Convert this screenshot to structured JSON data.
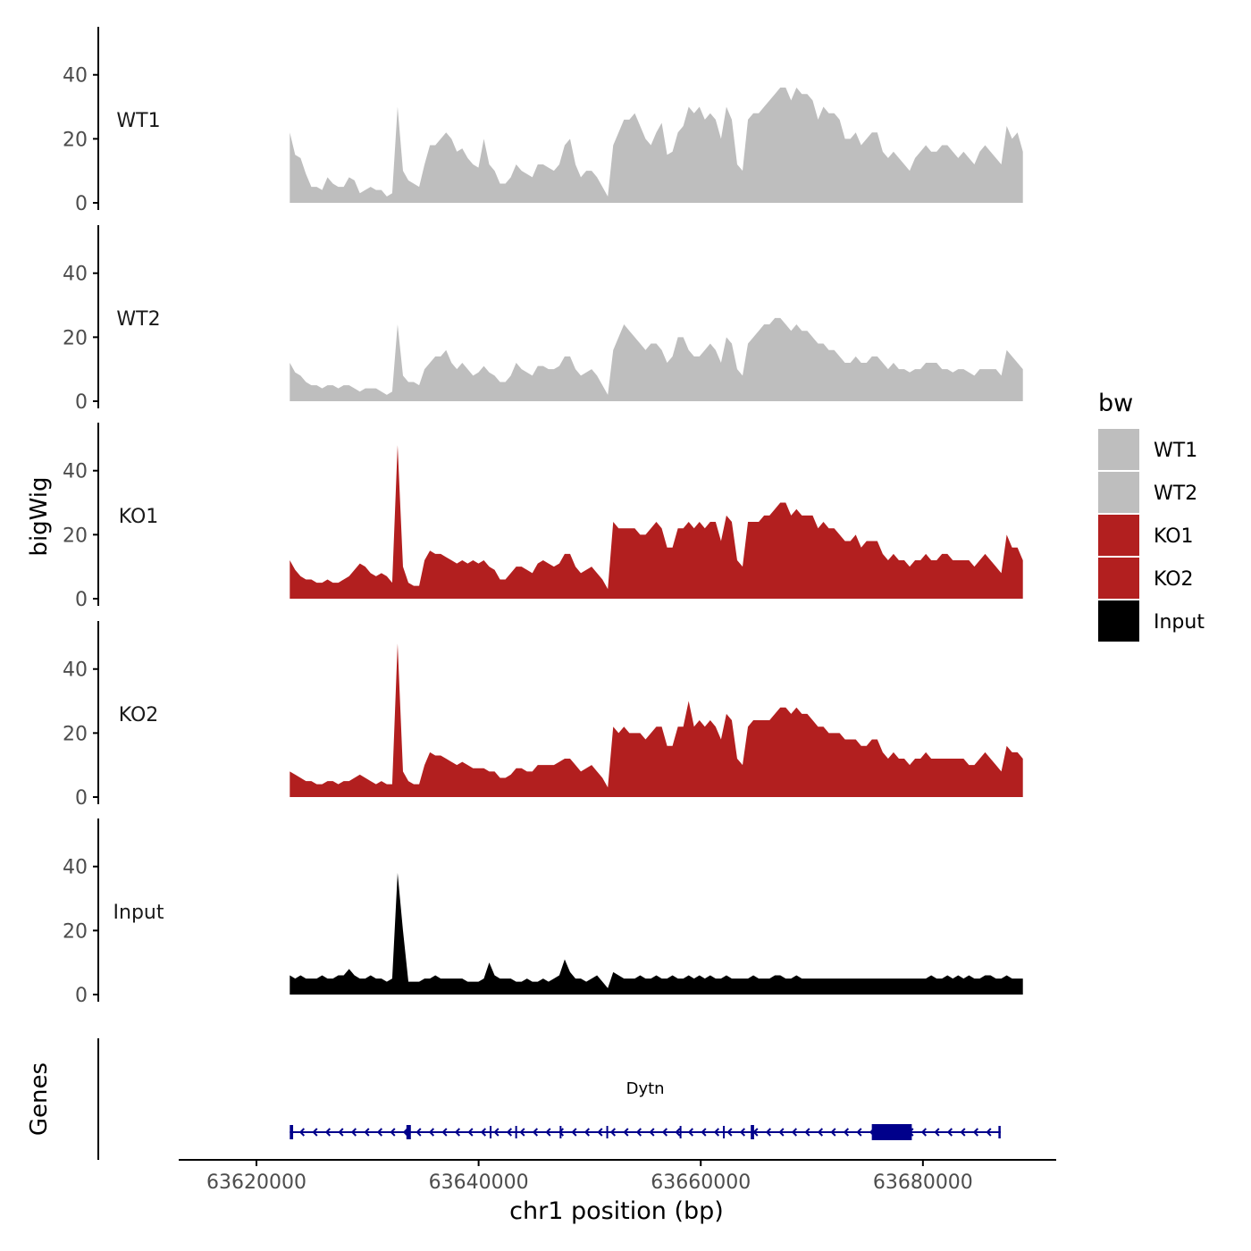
{
  "chart_data": {
    "type": "area",
    "chromosome": "chr1",
    "xlabel": "chr1 position (bp)",
    "ylabel": "bigWig",
    "genes_label": "Genes",
    "xlim": [
      63613000,
      63692000
    ],
    "data_range": [
      63623000,
      63689000
    ],
    "x_ticks": [
      63620000,
      63640000,
      63660000,
      63680000
    ],
    "x_tick_labels": [
      "63620000",
      "63640000",
      "63660000",
      "63680000"
    ],
    "ylim": [
      0,
      55
    ],
    "y_ticks": [
      0,
      20,
      40
    ],
    "y_tick_labels": [
      "0",
      "20",
      "40"
    ],
    "legend": {
      "title": "bw",
      "position": "right",
      "entries": [
        {
          "label": "WT1",
          "color": "#bebebe"
        },
        {
          "label": "WT2",
          "color": "#bebebe"
        },
        {
          "label": "KO1",
          "color": "#b21f1f"
        },
        {
          "label": "KO2",
          "color": "#b21f1f"
        },
        {
          "label": "Input",
          "color": "#000000"
        }
      ]
    },
    "series": [
      {
        "name": "WT1",
        "color": "#bebebe",
        "values": [
          22,
          15,
          14,
          9,
          5,
          5,
          4,
          8,
          6,
          5,
          5,
          8,
          7,
          3,
          4,
          5,
          4,
          4,
          2,
          3,
          30,
          10,
          7,
          6,
          5,
          12,
          18,
          18,
          20,
          22,
          20,
          16,
          17,
          14,
          12,
          11,
          20,
          12,
          10,
          6,
          6,
          8,
          12,
          10,
          9,
          8,
          12,
          12,
          11,
          10,
          12,
          18,
          20,
          12,
          8,
          10,
          10,
          8,
          5,
          2,
          18,
          22,
          26,
          26,
          28,
          24,
          20,
          18,
          22,
          25,
          15,
          16,
          22,
          24,
          30,
          28,
          30,
          26,
          28,
          26,
          20,
          30,
          26,
          12,
          10,
          26,
          28,
          28,
          30,
          32,
          34,
          36,
          36,
          32,
          36,
          34,
          34,
          32,
          26,
          30,
          28,
          28,
          26,
          20,
          20,
          22,
          18,
          20,
          22,
          22,
          16,
          14,
          16,
          14,
          12,
          10,
          14,
          16,
          18,
          16,
          16,
          18,
          18,
          16,
          14,
          16,
          14,
          12,
          16,
          18,
          16,
          14,
          12,
          24,
          20,
          22,
          16
        ]
      },
      {
        "name": "WT2",
        "color": "#bebebe",
        "values": [
          12,
          9,
          8,
          6,
          5,
          5,
          4,
          5,
          5,
          4,
          5,
          5,
          4,
          3,
          4,
          4,
          4,
          3,
          2,
          3,
          24,
          8,
          6,
          6,
          5,
          10,
          12,
          14,
          14,
          16,
          12,
          10,
          12,
          10,
          8,
          9,
          11,
          9,
          8,
          6,
          6,
          8,
          12,
          10,
          9,
          8,
          11,
          11,
          10,
          10,
          11,
          14,
          14,
          10,
          8,
          9,
          10,
          8,
          5,
          2,
          16,
          20,
          24,
          22,
          20,
          18,
          16,
          18,
          18,
          16,
          12,
          14,
          20,
          20,
          16,
          14,
          14,
          16,
          18,
          16,
          12,
          20,
          18,
          10,
          8,
          18,
          20,
          22,
          24,
          24,
          26,
          26,
          24,
          22,
          24,
          22,
          22,
          20,
          18,
          18,
          16,
          16,
          14,
          12,
          12,
          14,
          12,
          12,
          14,
          14,
          12,
          10,
          12,
          10,
          10,
          9,
          10,
          10,
          12,
          12,
          12,
          10,
          10,
          9,
          10,
          10,
          9,
          8,
          10,
          10,
          10,
          10,
          8,
          16,
          14,
          12,
          10
        ]
      },
      {
        "name": "KO1",
        "color": "#b21f1f",
        "values": [
          12,
          9,
          7,
          6,
          6,
          5,
          5,
          6,
          5,
          5,
          6,
          7,
          9,
          11,
          10,
          8,
          7,
          8,
          7,
          5,
          48,
          10,
          5,
          4,
          4,
          12,
          15,
          14,
          14,
          13,
          12,
          11,
          12,
          11,
          12,
          11,
          12,
          10,
          9,
          6,
          6,
          8,
          10,
          10,
          9,
          8,
          11,
          12,
          11,
          10,
          11,
          14,
          14,
          10,
          8,
          9,
          10,
          8,
          6,
          3,
          24,
          22,
          22,
          22,
          22,
          20,
          20,
          22,
          24,
          22,
          16,
          16,
          22,
          22,
          24,
          22,
          24,
          22,
          24,
          24,
          18,
          26,
          24,
          12,
          10,
          24,
          24,
          24,
          26,
          26,
          28,
          30,
          30,
          26,
          28,
          26,
          26,
          26,
          22,
          24,
          22,
          22,
          20,
          18,
          18,
          20,
          16,
          18,
          18,
          18,
          14,
          12,
          14,
          12,
          12,
          10,
          12,
          12,
          14,
          12,
          12,
          14,
          14,
          12,
          12,
          12,
          12,
          10,
          12,
          14,
          12,
          10,
          8,
          20,
          16,
          16,
          12
        ]
      },
      {
        "name": "KO2",
        "color": "#b21f1f",
        "values": [
          8,
          7,
          6,
          5,
          5,
          4,
          4,
          5,
          5,
          4,
          5,
          5,
          6,
          7,
          6,
          5,
          4,
          5,
          4,
          4,
          48,
          8,
          5,
          4,
          4,
          10,
          14,
          13,
          13,
          12,
          11,
          10,
          11,
          10,
          9,
          9,
          9,
          8,
          8,
          6,
          6,
          7,
          9,
          9,
          8,
          8,
          10,
          10,
          10,
          10,
          11,
          12,
          12,
          10,
          8,
          9,
          10,
          8,
          6,
          3,
          22,
          20,
          22,
          20,
          20,
          20,
          18,
          20,
          22,
          22,
          16,
          16,
          22,
          22,
          30,
          22,
          24,
          22,
          24,
          22,
          18,
          26,
          24,
          12,
          10,
          22,
          24,
          24,
          24,
          24,
          26,
          28,
          28,
          26,
          28,
          26,
          26,
          24,
          22,
          22,
          20,
          20,
          20,
          18,
          18,
          18,
          16,
          16,
          18,
          18,
          14,
          12,
          14,
          12,
          12,
          10,
          12,
          12,
          14,
          12,
          12,
          12,
          12,
          12,
          12,
          12,
          10,
          10,
          12,
          14,
          12,
          10,
          8,
          16,
          14,
          14,
          12
        ]
      },
      {
        "name": "Input",
        "color": "#000000",
        "values": [
          6,
          5,
          6,
          5,
          5,
          5,
          6,
          5,
          5,
          6,
          6,
          8,
          6,
          5,
          5,
          6,
          5,
          5,
          4,
          5,
          38,
          20,
          4,
          4,
          4,
          5,
          5,
          6,
          5,
          5,
          5,
          5,
          5,
          4,
          4,
          4,
          5,
          10,
          6,
          5,
          5,
          5,
          4,
          4,
          5,
          4,
          4,
          5,
          4,
          5,
          6,
          11,
          7,
          5,
          5,
          4,
          5,
          6,
          4,
          2,
          7,
          6,
          5,
          5,
          5,
          6,
          5,
          5,
          6,
          5,
          5,
          6,
          5,
          5,
          6,
          5,
          6,
          5,
          6,
          5,
          5,
          6,
          5,
          5,
          5,
          5,
          6,
          5,
          5,
          5,
          6,
          6,
          5,
          5,
          6,
          5,
          5,
          5,
          5,
          5,
          5,
          5,
          5,
          5,
          5,
          5,
          5,
          5,
          5,
          5,
          5,
          5,
          5,
          5,
          5,
          5,
          5,
          5,
          5,
          6,
          5,
          5,
          6,
          5,
          6,
          5,
          6,
          5,
          5,
          6,
          6,
          5,
          5,
          6,
          5,
          5,
          5
        ]
      }
    ],
    "gene": {
      "name": "Dytn",
      "start": 63623000,
      "end": 63687000,
      "strand": "-",
      "color": "#00008b",
      "exons": [
        {
          "start": 63623000,
          "end": 63623300
        },
        {
          "start": 63633500,
          "end": 63633900
        },
        {
          "start": 63641000,
          "end": 63641100
        },
        {
          "start": 63643300,
          "end": 63643400
        },
        {
          "start": 63647300,
          "end": 63647400
        },
        {
          "start": 63651500,
          "end": 63651600
        },
        {
          "start": 63658100,
          "end": 63658200
        },
        {
          "start": 63662000,
          "end": 63662100
        },
        {
          "start": 63664500,
          "end": 63664800
        },
        {
          "start": 63675400,
          "end": 63679000
        },
        {
          "start": 63686800,
          "end": 63687000
        }
      ]
    }
  }
}
